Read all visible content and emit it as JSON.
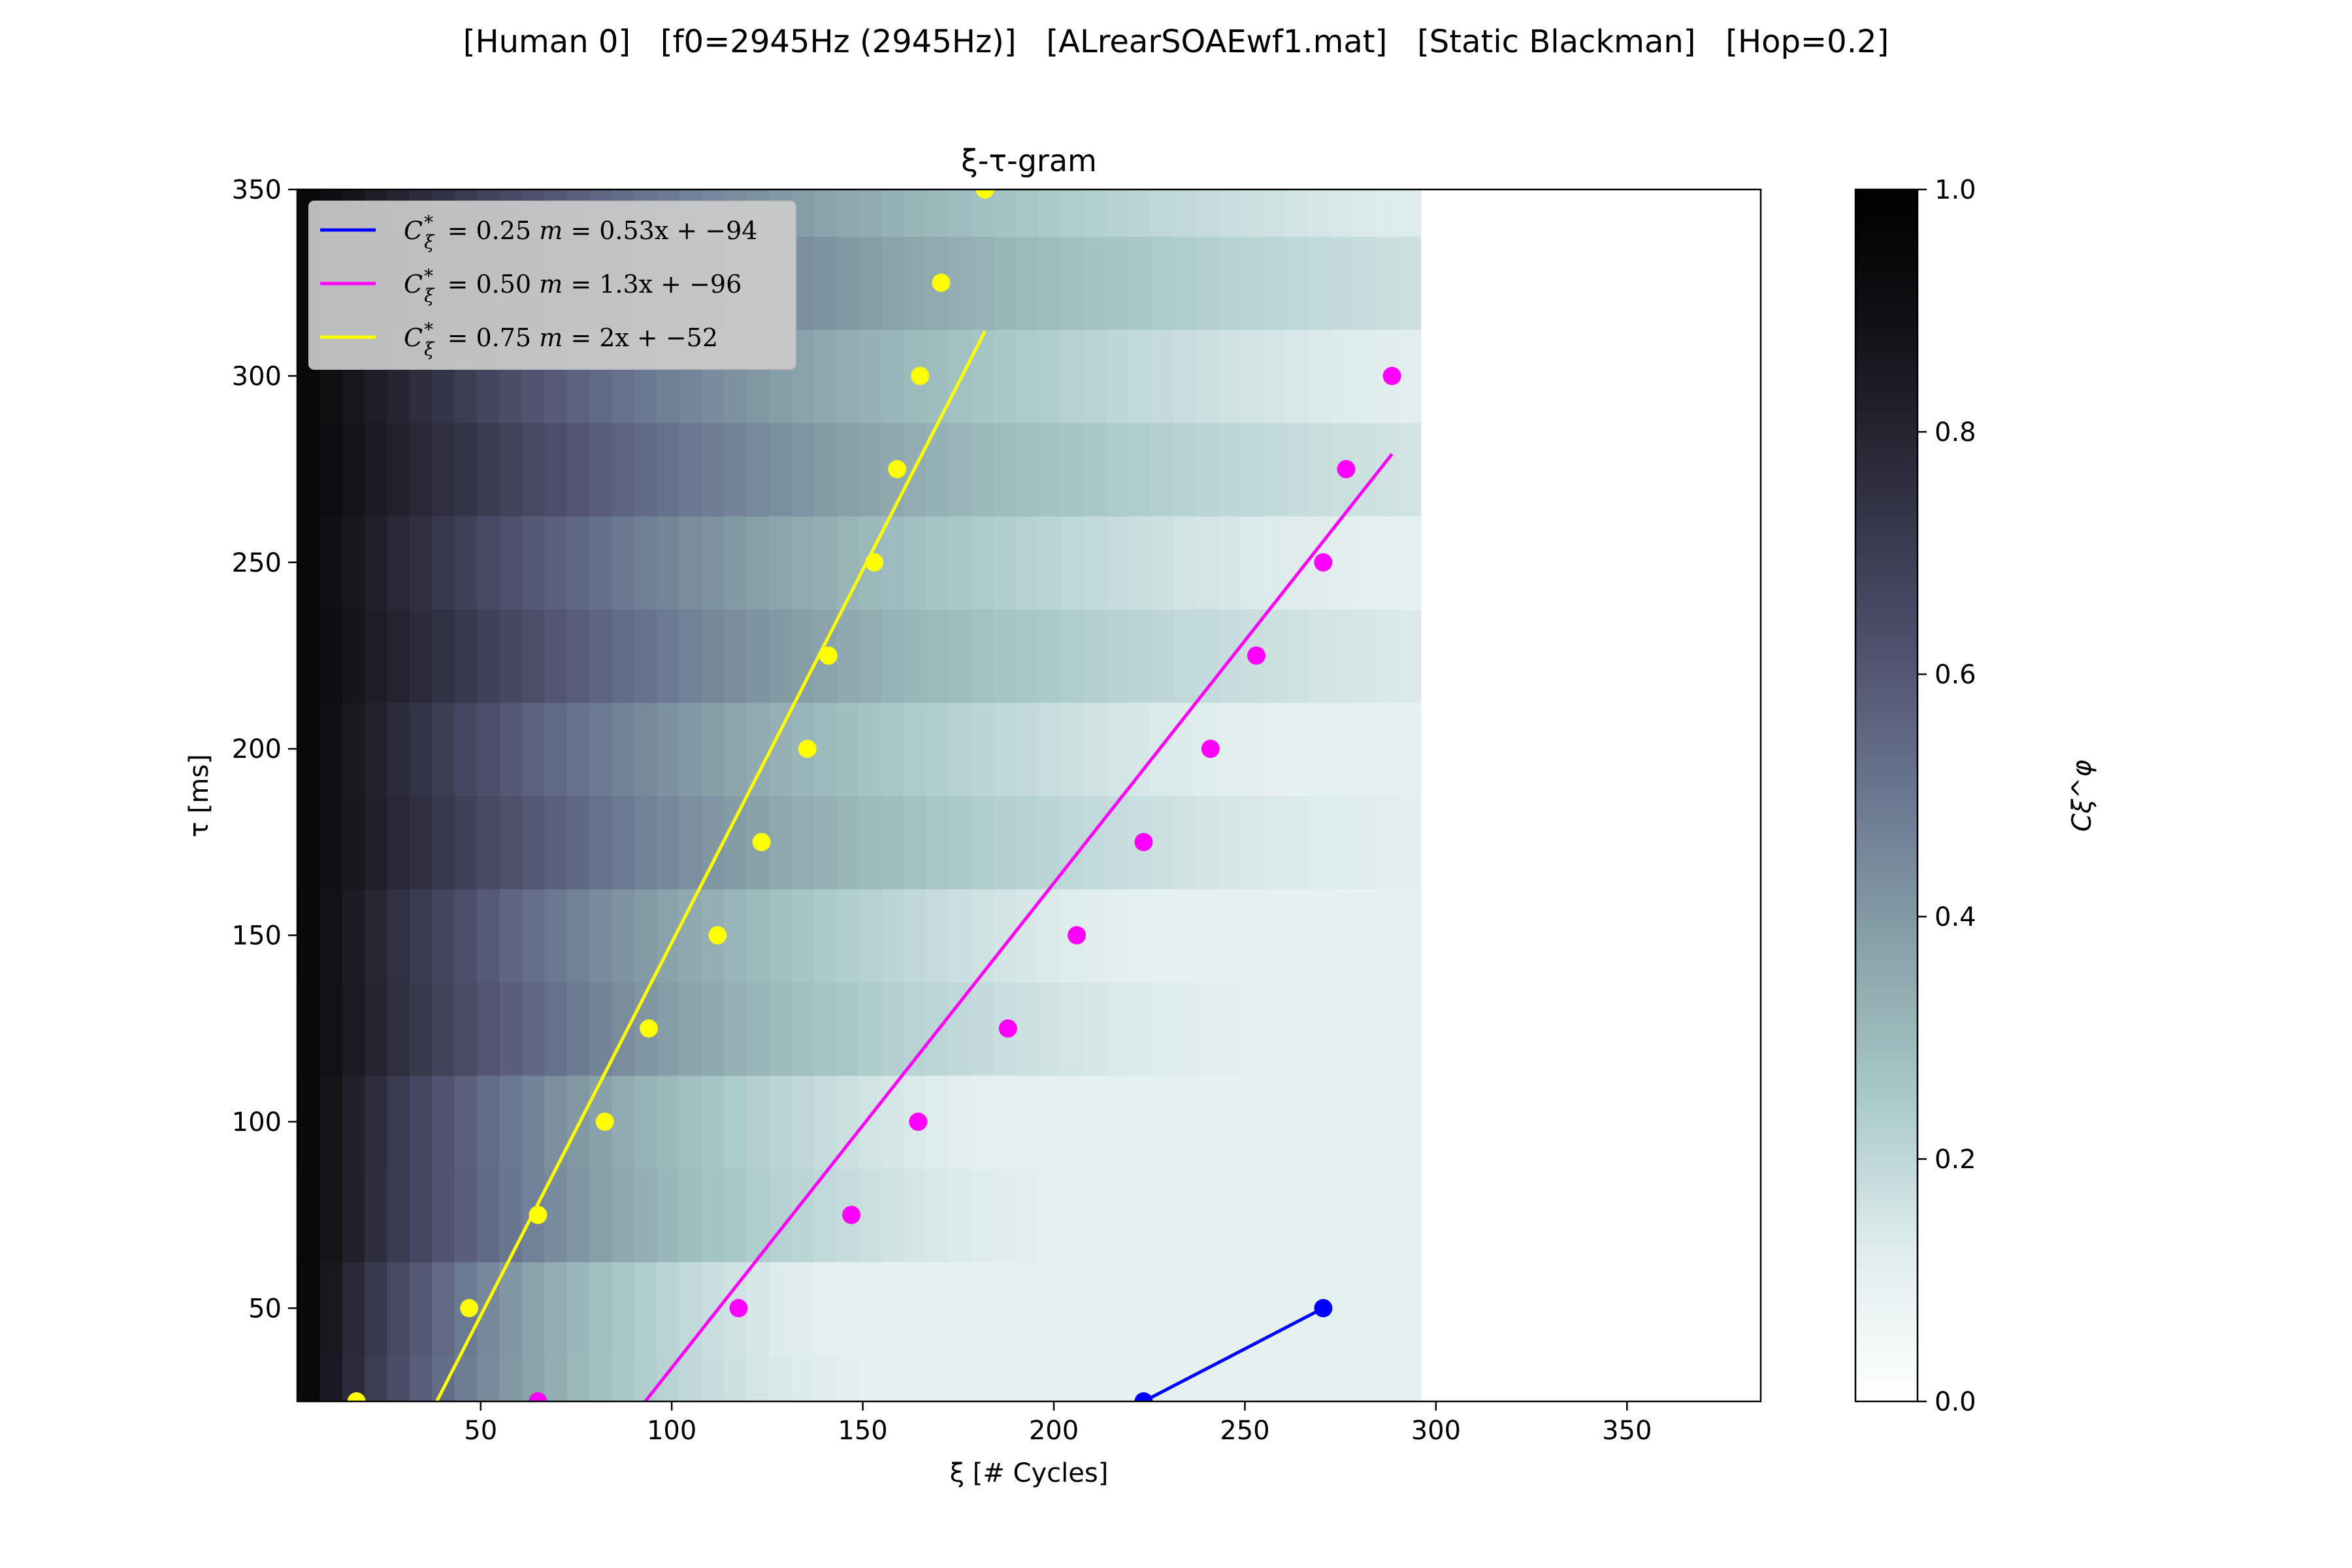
{
  "suptitle": "[Human 0]   [f0=2945Hz (2945Hz)]   [ALrearSOAEwf1.mat]   [Static Blackman]   [Hop=0.2]",
  "chart_data": {
    "type": "heatmap",
    "title": "ξ-τ-gram",
    "xlabel": "ξ [# Cycles]",
    "ylabel": "τ [ms]",
    "xlim": [
      2,
      385
    ],
    "ylim": [
      25,
      350
    ],
    "xticks": [
      50,
      100,
      150,
      200,
      250,
      300,
      350
    ],
    "yticks": [
      50,
      100,
      150,
      200,
      250,
      300,
      350
    ],
    "heatmap": {
      "x_range": [
        2,
        296
      ],
      "tau_rows_start": 25,
      "tau_row_step": 25,
      "colormap": "bone_r",
      "value_label": "Cξ^φ",
      "description": "Phase coherence decreasing with ξ; rows every 25 ms"
    },
    "colorbar": {
      "label": "Cξ^φ",
      "range": [
        0.0,
        1.0
      ],
      "ticks": [
        "0.0",
        "0.2",
        "0.4",
        "0.6",
        "0.8",
        "1.0"
      ]
    },
    "legend": {
      "location": "upper-left",
      "entries": [
        {
          "color": "#0000ff",
          "c_label": "0.25",
          "fit": "0.53x + −94"
        },
        {
          "color": "#ff00ff",
          "c_label": "0.50",
          "fit": "1.3x + −96"
        },
        {
          "color": "#ffff00",
          "c_label": "0.75",
          "fit": "2x + −52"
        }
      ]
    },
    "series": [
      {
        "name": "C*=0.25",
        "color": "#0000ff",
        "connected_points": true,
        "points": [
          [
            223.5,
            25
          ],
          [
            270.5,
            50
          ]
        ],
        "fit_line": null
      },
      {
        "name": "C*=0.50",
        "color": "#ff00ff",
        "connected_points": false,
        "points": [
          [
            65,
            25
          ],
          [
            117.5,
            50
          ],
          [
            147,
            75
          ],
          [
            164.5,
            100
          ],
          [
            188,
            125
          ],
          [
            206,
            150
          ],
          [
            223.5,
            175
          ],
          [
            241,
            200
          ],
          [
            253,
            225
          ],
          [
            270.5,
            250
          ],
          [
            276.5,
            275
          ],
          [
            288.5,
            300
          ]
        ],
        "fit_line": {
          "slope": 1.3,
          "intercept": -96,
          "x_range": [
            92.5,
            288.5
          ]
        }
      },
      {
        "name": "C*=0.75",
        "color": "#ffff00",
        "connected_points": false,
        "points": [
          [
            17.5,
            25
          ],
          [
            47,
            50
          ],
          [
            65,
            75
          ],
          [
            82.5,
            100
          ],
          [
            94,
            125
          ],
          [
            112,
            150
          ],
          [
            123.5,
            175
          ],
          [
            135.5,
            200
          ],
          [
            141,
            225
          ],
          [
            153,
            250
          ],
          [
            159,
            275
          ],
          [
            165,
            300
          ],
          [
            170.5,
            325
          ],
          [
            182,
            350
          ]
        ],
        "fit_line": {
          "slope": 2,
          "intercept": -52,
          "x_range": [
            38.5,
            182
          ]
        }
      }
    ]
  }
}
